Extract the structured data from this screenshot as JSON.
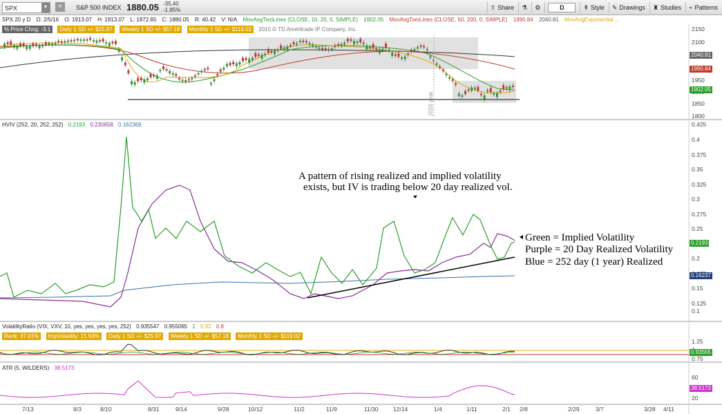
{
  "toolbar": {
    "symbol": "SPX",
    "company": "S&P 500 INDEX",
    "last": "1880.05",
    "change": "-35.40",
    "change_pct": "-1.85%",
    "buttons": [
      "Share",
      "Style",
      "Drawings",
      "Studies",
      "Patterns"
    ],
    "period": "D"
  },
  "infobar": {
    "agg": "SPX 20 y D",
    "date": "D: 2/5/16",
    "open": "O: 1913.07",
    "high": "H: 1913.07",
    "low": "L: 1872.65",
    "close": "C: 1880.05",
    "range": "R: 40.42",
    "vol": "V: N/A",
    "ma1": "MovAvgTwoLines (CLOSE, 10, 20, 0, SIMPLE)",
    "ma1_val": "1902.05",
    "ma2": "MovAvgTwoLines (CLOSE, 50, 200, 0, SIMPLE)",
    "ma2_val1": "1990.84",
    "ma2_val2": "2040.81",
    "ma3": "MovAvgExponential ..."
  },
  "price_labels": {
    "pct": "% Price Chng: -3.1",
    "daily": "Daily 1 SD +/- $25.97",
    "weekly": "Weekly 1 SD +/- $57.18",
    "monthly": "Monthly 1 SD +/- $119.02",
    "copyright": "2015 © TD Ameritrade IP Company, Inc.",
    "year_marker": "2016 year"
  },
  "price_axis": [
    "2150",
    "2100",
    "2050",
    "2000",
    "1950",
    "1900",
    "1850",
    "1800"
  ],
  "price_badges": [
    "2040.81",
    "1990.84",
    "1902.05"
  ],
  "hviv": {
    "label": "HVIV (252, 20, 252, 252)",
    "v1": "0.2193",
    "v2": "0.230658",
    "v3": "0.162369",
    "axis": [
      "0.425",
      "0.4",
      "0.375",
      "0.35",
      "0.325",
      "0.3",
      "0.275",
      "0.25",
      "0.225",
      "0.2",
      "0.175",
      "0.15",
      "0.125",
      "0.1"
    ],
    "badges": [
      "0.2193",
      "0.16237"
    ]
  },
  "annotations": {
    "headline1": "A pattern of rising realized and implied volatility",
    "headline2": "exists, but IV is trading below 20 day realized vol.",
    "legend_green": "Green = Implied Volatility",
    "legend_purple": "Purple = 20 Day Realized Volatility",
    "legend_blue": "Blue = 252 day (1 year) Realized"
  },
  "vr": {
    "label": "VolatilityRatio (VIX, VXV, 10, yes, yes, yes, yes, 252)",
    "v1": "0.935547",
    "v2": "0.955065",
    "v3": "1",
    "v4": "0.92",
    "v5": "0.8",
    "rank": "Rank: 37.01%",
    "imp": "ImpVolatility: 21.93%",
    "daily": "Daily 1 SD +/- $25.97",
    "weekly": "Weekly 1 SD +/- $57.18",
    "monthly": "Monthly 1 SD +/- $119.02",
    "axis": [
      "1.25",
      "1",
      "0.75"
    ],
    "badge": "0.93555"
  },
  "atr": {
    "label": "ATR (5, WILDERS)",
    "value": "38.5173",
    "axis": [
      "60",
      "40",
      "20"
    ],
    "badge": "38.5173"
  },
  "time_axis": [
    "7/13",
    "8/3",
    "8/10",
    "8/31",
    "9/14",
    "9/28",
    "10/12",
    "11/2",
    "11/9",
    "11/30",
    "12/14",
    "1/4",
    "1/11",
    "2/1",
    "2/8",
    "2/29",
    "3/7",
    "3/28",
    "4/11"
  ],
  "colors": {
    "green": "#2a9d2a",
    "purple": "#8b2b9b",
    "blue": "#3a6ea5",
    "red": "#c0392b",
    "yellow": "#e0a800",
    "magenta": "#cc33cc"
  }
}
